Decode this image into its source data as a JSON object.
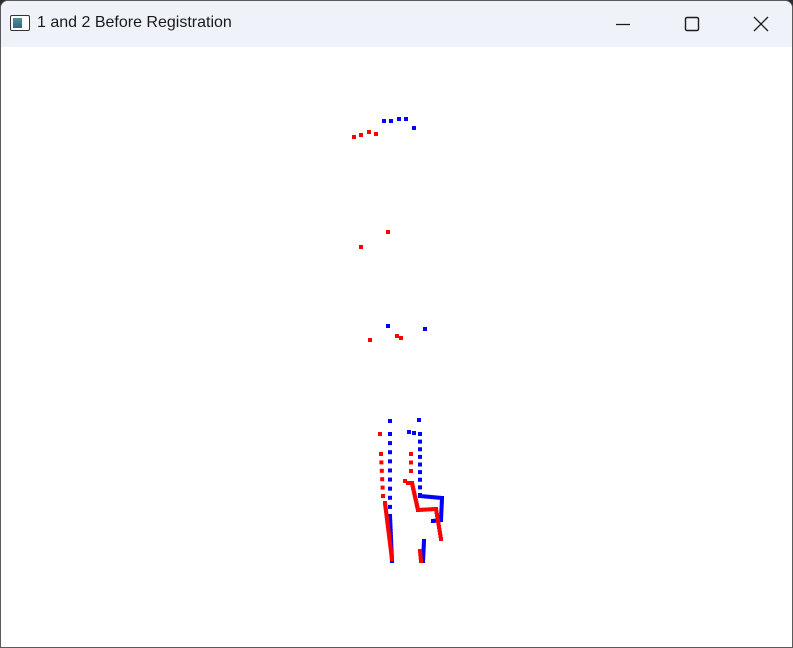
{
  "window": {
    "title": "1 and 2 Before Registration",
    "controls": [
      "minimize",
      "maximize",
      "close"
    ],
    "icon": "app-window-icon"
  },
  "scan_colors": {
    "scan_1": "#0000ff",
    "scan_2": "#ff0000"
  }
}
